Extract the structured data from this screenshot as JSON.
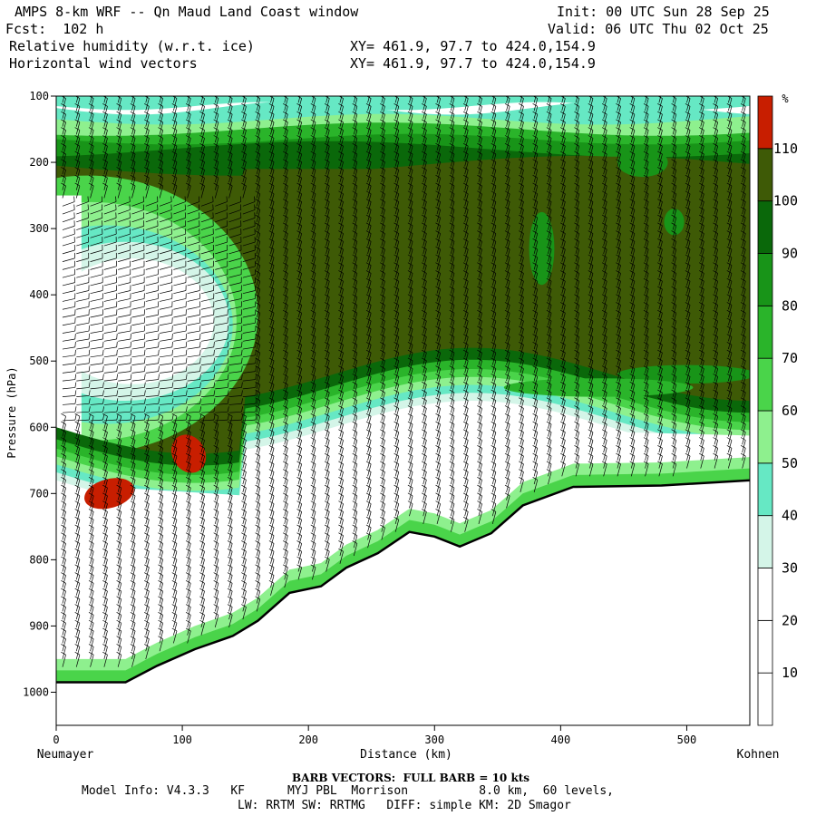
{
  "header": {
    "title": "AMPS 8-km WRF -- Qn Maud Land Coast window",
    "init": "Init: 00 UTC Sun 28 Sep 25",
    "fcst": "Fcst:  102 h",
    "valid": "Valid: 06 UTC Thu 02 Oct 25",
    "field1": "Relative humidity (w.r.t. ice)",
    "field2": "Horizontal wind vectors",
    "xy1": "XY= 461.9, 97.7 to 424.0,154.9",
    "xy2": "XY= 461.9, 97.7 to 424.0,154.9"
  },
  "chart_data": {
    "type": "heatmap",
    "xlabel": "Distance (km)",
    "ylabel": "Pressure (hPa)",
    "xlim": [
      0,
      550
    ],
    "ylim": [
      1050,
      100
    ],
    "x_ticks": [
      0,
      100,
      200,
      300,
      400,
      500
    ],
    "y_ticks": [
      100,
      200,
      300,
      400,
      500,
      600,
      700,
      800,
      900,
      1000
    ],
    "x_left_label": "Neumayer",
    "x_right_label": "Kohnen",
    "colorbar": {
      "unit": "%",
      "levels": [
        10,
        20,
        30,
        40,
        50,
        60,
        70,
        80,
        90,
        100,
        110
      ],
      "colors": [
        "#ffffff",
        "#ffffff",
        "#ffffff",
        "#d4f5e8",
        "#66e8c4",
        "#8ef08e",
        "#4ad44a",
        "#2ab42a",
        "#189418",
        "#0a680a",
        "#3e5a06",
        "#c81e00"
      ]
    },
    "terrain": [
      {
        "x": 0,
        "p": 985
      },
      {
        "x": 55,
        "p": 985
      },
      {
        "x": 80,
        "p": 960
      },
      {
        "x": 110,
        "p": 935
      },
      {
        "x": 140,
        "p": 915
      },
      {
        "x": 160,
        "p": 892
      },
      {
        "x": 185,
        "p": 850
      },
      {
        "x": 210,
        "p": 840
      },
      {
        "x": 230,
        "p": 812
      },
      {
        "x": 255,
        "p": 790
      },
      {
        "x": 280,
        "p": 758
      },
      {
        "x": 300,
        "p": 765
      },
      {
        "x": 320,
        "p": 780
      },
      {
        "x": 345,
        "p": 760
      },
      {
        "x": 370,
        "p": 718
      },
      {
        "x": 410,
        "p": 690
      },
      {
        "x": 480,
        "p": 688
      },
      {
        "x": 550,
        "p": 680
      }
    ],
    "fields": {
      "surface_band_colors": [
        "#ffffff",
        "#d4f5e8",
        "#66e8c4",
        "#8ef08e",
        "#4ad44a",
        "#2ab42a",
        "#0a680a"
      ],
      "upper_band_colors": [
        "#ffffff",
        "#66e8c4",
        "#8ef08e",
        "#2ab42a",
        "#189418",
        "#0a680a"
      ]
    },
    "moist_patches_110": [
      {
        "x": 42,
        "p": 700
      },
      {
        "x": 105,
        "p": 640
      }
    ],
    "barb_note": "BARB VECTORS:  FULL BARB = 10 kts"
  },
  "footer": {
    "barb": "BARB VECTORS:  FULL BARB = 10 kts",
    "model_info": "Model Info: V4.3.3   KF      MYJ PBL  Morrison          8.0 km,  60 levels,",
    "model_info2": "LW: RRTM SW: RRTMG   DIFF: simple KM: 2D Smagor"
  }
}
